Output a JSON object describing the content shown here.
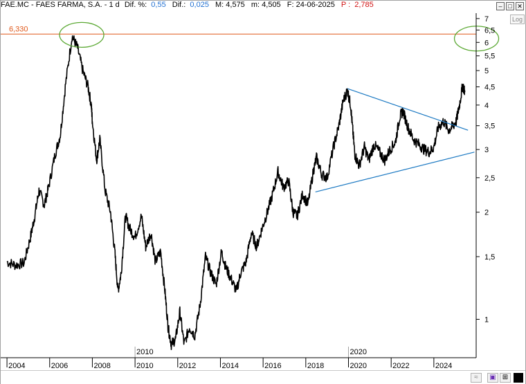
{
  "header": {
    "symbol_name": "FAE.MC - FAES FARMA, S.A. -  1 d",
    "dif_pct_label": "Dif. %:",
    "dif_pct_value": "0,55",
    "dif_label": "Dif.:",
    "dif_value": "0,025",
    "max_label": "M: 4,575",
    "min_label": "m: 4,505",
    "date_label": "F: 24-06-2025",
    "p_label": "P :",
    "p_value": "2,785"
  },
  "log_button_label": "Log",
  "colors": {
    "price": "#000000",
    "resistance_line": "#e0581a",
    "trendline": "#1a78c2",
    "highlight_ellipse": "#5aa832",
    "value_blue": "#1f6fd1",
    "value_red": "#d01010"
  },
  "icons": [
    "minimize-icon",
    "maximize-icon",
    "close-icon",
    "wave-icon",
    "save-icon",
    "split-icon",
    "color-swatch-icon"
  ],
  "chart_data": {
    "type": "line",
    "scale": "log",
    "ylim": [
      0.78,
      7.25
    ],
    "xlim": [
      2003.9,
      2025.95
    ],
    "y_ticks": [
      {
        "v": 7,
        "label": "7"
      },
      {
        "v": 6.5,
        "label": "6,5"
      },
      {
        "v": 6,
        "label": "6"
      },
      {
        "v": 5.5,
        "label": "5,5"
      },
      {
        "v": 5,
        "label": "5"
      },
      {
        "v": 4.5,
        "label": "4,5"
      },
      {
        "v": 4,
        "label": "4"
      },
      {
        "v": 3.5,
        "label": "3,5"
      },
      {
        "v": 3,
        "label": "3"
      },
      {
        "v": 2.5,
        "label": "2,5"
      },
      {
        "v": 2,
        "label": "2"
      },
      {
        "v": 1.5,
        "label": "1,5"
      },
      {
        "v": 1,
        "label": "1"
      }
    ],
    "x_ticks": [
      {
        "v": 2004,
        "label": "2004"
      },
      {
        "v": 2006,
        "label": "2006"
      },
      {
        "v": 2008,
        "label": "2008"
      },
      {
        "v": 2010,
        "label": "2010"
      },
      {
        "v": 2012,
        "label": "2012"
      },
      {
        "v": 2014,
        "label": "2014"
      },
      {
        "v": 2016,
        "label": "2016"
      },
      {
        "v": 2018,
        "label": "2018"
      },
      {
        "v": 2020,
        "label": "2020"
      },
      {
        "v": 2022,
        "label": "2022"
      },
      {
        "v": 2024,
        "label": "2024"
      }
    ],
    "decade_markers": [
      {
        "v": 2010,
        "label": "2010"
      },
      {
        "v": 2020,
        "label": "2020"
      }
    ],
    "resistance": {
      "value": 6.33,
      "label": "6,330"
    },
    "series": [
      {
        "values": [
          [
            2004.0,
            1.45
          ],
          [
            2004.4,
            1.42
          ],
          [
            2004.8,
            1.44
          ],
          [
            2005.1,
            1.7
          ],
          [
            2005.3,
            1.95
          ],
          [
            2005.5,
            2.3
          ],
          [
            2005.75,
            2.1
          ],
          [
            2005.95,
            2.35
          ],
          [
            2006.25,
            2.9
          ],
          [
            2006.5,
            3.3
          ],
          [
            2006.75,
            4.6
          ],
          [
            2007.05,
            6.25
          ],
          [
            2007.3,
            5.8
          ],
          [
            2007.55,
            5.0
          ],
          [
            2007.8,
            4.5
          ],
          [
            2007.95,
            4.0
          ],
          [
            2008.0,
            3.6
          ],
          [
            2008.2,
            2.8
          ],
          [
            2008.35,
            3.2
          ],
          [
            2008.6,
            2.3
          ],
          [
            2008.85,
            2.0
          ],
          [
            2009.05,
            1.55
          ],
          [
            2009.2,
            1.2
          ],
          [
            2009.35,
            1.35
          ],
          [
            2009.55,
            1.95
          ],
          [
            2009.75,
            1.8
          ],
          [
            2010.0,
            1.7
          ],
          [
            2010.3,
            1.95
          ],
          [
            2010.5,
            1.6
          ],
          [
            2010.75,
            1.75
          ],
          [
            2010.95,
            1.45
          ],
          [
            2011.2,
            1.55
          ],
          [
            2011.4,
            1.2
          ],
          [
            2011.55,
            0.95
          ],
          [
            2011.7,
            0.85
          ],
          [
            2011.9,
            0.88
          ],
          [
            2012.1,
            1.05
          ],
          [
            2012.3,
            0.85
          ],
          [
            2012.55,
            0.95
          ],
          [
            2012.8,
            0.9
          ],
          [
            2013.05,
            1.1
          ],
          [
            2013.3,
            1.5
          ],
          [
            2013.55,
            1.35
          ],
          [
            2013.8,
            1.25
          ],
          [
            2014.05,
            1.55
          ],
          [
            2014.25,
            1.4
          ],
          [
            2014.5,
            1.3
          ],
          [
            2014.75,
            1.2
          ],
          [
            2014.95,
            1.35
          ],
          [
            2015.2,
            1.45
          ],
          [
            2015.45,
            1.75
          ],
          [
            2015.7,
            1.6
          ],
          [
            2015.95,
            1.8
          ],
          [
            2016.2,
            2.0
          ],
          [
            2016.45,
            2.25
          ],
          [
            2016.7,
            2.6
          ],
          [
            2016.95,
            2.35
          ],
          [
            2017.2,
            2.45
          ],
          [
            2017.4,
            2.0
          ],
          [
            2017.6,
            1.95
          ],
          [
            2017.85,
            2.25
          ],
          [
            2018.1,
            2.1
          ],
          [
            2018.35,
            2.6
          ],
          [
            2018.5,
            2.85
          ],
          [
            2018.75,
            2.55
          ],
          [
            2019.0,
            2.5
          ],
          [
            2019.3,
            3.05
          ],
          [
            2019.55,
            3.5
          ],
          [
            2019.75,
            4.1
          ],
          [
            2019.95,
            4.4
          ],
          [
            2020.1,
            4.0
          ],
          [
            2020.2,
            3.4
          ],
          [
            2020.3,
            2.9
          ],
          [
            2020.5,
            2.7
          ],
          [
            2020.75,
            3.05
          ],
          [
            2020.95,
            2.8
          ],
          [
            2021.2,
            3.1
          ],
          [
            2021.45,
            2.95
          ],
          [
            2021.7,
            2.8
          ],
          [
            2021.95,
            3.0
          ],
          [
            2022.2,
            3.15
          ],
          [
            2022.4,
            3.7
          ],
          [
            2022.55,
            3.85
          ],
          [
            2022.8,
            3.45
          ],
          [
            2023.05,
            3.2
          ],
          [
            2023.3,
            3.1
          ],
          [
            2023.55,
            3.0
          ],
          [
            2023.8,
            2.95
          ],
          [
            2024.0,
            3.05
          ],
          [
            2024.2,
            3.45
          ],
          [
            2024.45,
            3.6
          ],
          [
            2024.7,
            3.4
          ],
          [
            2024.9,
            3.5
          ],
          [
            2025.05,
            3.6
          ],
          [
            2025.2,
            4.0
          ],
          [
            2025.35,
            4.55
          ],
          [
            2025.45,
            4.35
          ]
        ]
      }
    ],
    "trendlines": [
      {
        "from": [
          2019.95,
          4.45
        ],
        "to": [
          2025.6,
          3.4
        ]
      },
      {
        "from": [
          2018.45,
          2.28
        ],
        "to": [
          2025.9,
          2.95
        ]
      }
    ],
    "annotations": [
      {
        "type": "ellipse",
        "center": [
          2007.5,
          6.3
        ]
      },
      {
        "type": "ellipse",
        "center": [
          2026.0,
          6.15
        ]
      }
    ],
    "grid": false
  }
}
